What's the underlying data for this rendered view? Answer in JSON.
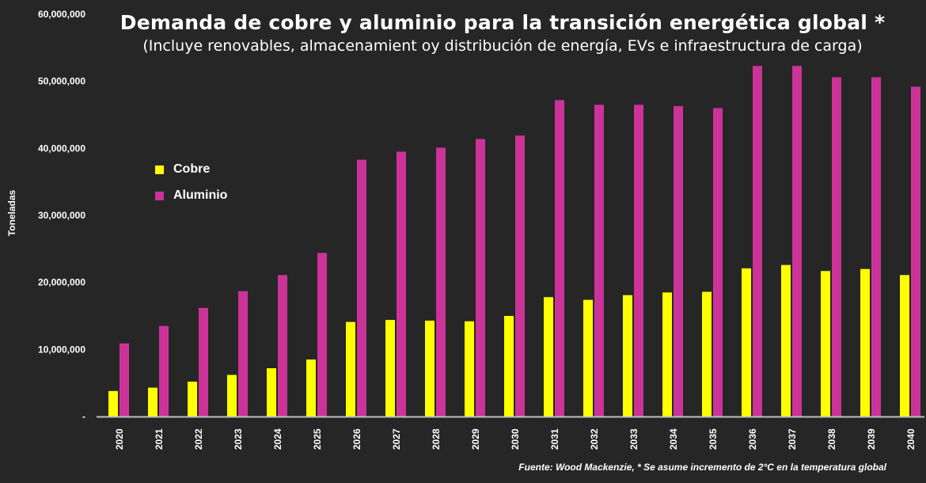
{
  "chart_data": {
    "type": "bar",
    "title": "Demanda de cobre y aluminio para la transición energética global *",
    "subtitle": "(Incluye renovables, almacenamient oy distribución de energía, EVs e infraestructura de carga)",
    "xlabel": "",
    "ylabel": "Toneladas",
    "ylim": [
      0,
      60000000
    ],
    "yticks": [
      0,
      10000000,
      20000000,
      30000000,
      40000000,
      50000000,
      60000000
    ],
    "ytick_labels": [
      "-",
      "10,000,000",
      "20,000,000",
      "30,000,000",
      "40,000,000",
      "50,000,000",
      "60,000,000"
    ],
    "categories": [
      "2020",
      "2021",
      "2022",
      "2023",
      "2024",
      "2025",
      "2026",
      "2027",
      "2028",
      "2029",
      "2030",
      "2031",
      "2032",
      "2033",
      "2034",
      "2035",
      "2036",
      "2037",
      "2038",
      "2039",
      "2040"
    ],
    "series": [
      {
        "name": "Cobre",
        "color": "#ffff00",
        "values": [
          3800000,
          4300000,
          5200000,
          6200000,
          7200000,
          8500000,
          14100000,
          14400000,
          14300000,
          14200000,
          15000000,
          17800000,
          17400000,
          18100000,
          18500000,
          18600000,
          22100000,
          22600000,
          21700000,
          22000000,
          21100000
        ]
      },
      {
        "name": "Aluminio",
        "color": "#cc3399",
        "values": [
          10900000,
          13500000,
          16200000,
          18700000,
          21100000,
          24400000,
          38300000,
          39500000,
          40100000,
          41400000,
          41900000,
          47200000,
          46500000,
          46500000,
          46300000,
          46000000,
          52300000,
          52300000,
          50600000,
          50600000,
          49200000
        ]
      }
    ],
    "legend_position": "left",
    "grid": false,
    "source_note": "Fuente: Wood Mackenzie, * Se asume incremento de 2°C en la temperatura global"
  }
}
